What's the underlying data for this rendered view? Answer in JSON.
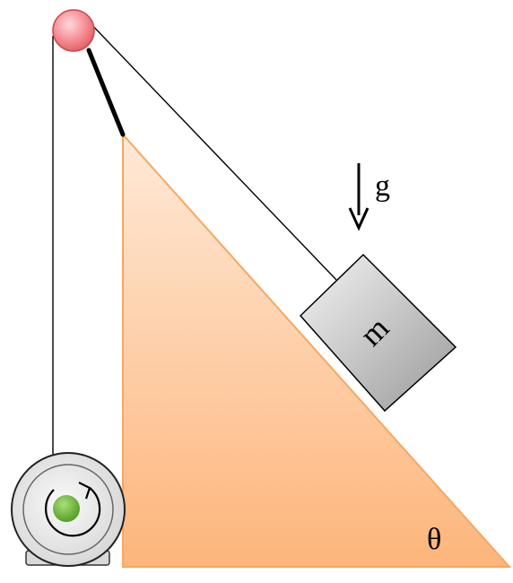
{
  "labels": {
    "gravity": "g",
    "mass": "m",
    "angle": "θ"
  },
  "icons": {
    "pulley": "pulley-icon",
    "winch": "winch-motor-icon",
    "rotation": "rotation-arrow-icon",
    "gravity": "down-arrow-icon"
  },
  "colors": {
    "incline_light": "#FFE6D2",
    "incline_dark": "#FDB57A",
    "incline_edge": "#F7A760",
    "pulley_fill": "#F47F86",
    "pulley_light": "#FFD4D6",
    "block_light": "#F2F2F2",
    "block_dark": "#9A9A9A",
    "winch_hub": "#67B830",
    "winch_body": "#E8E8E8",
    "rope": "#000000"
  }
}
